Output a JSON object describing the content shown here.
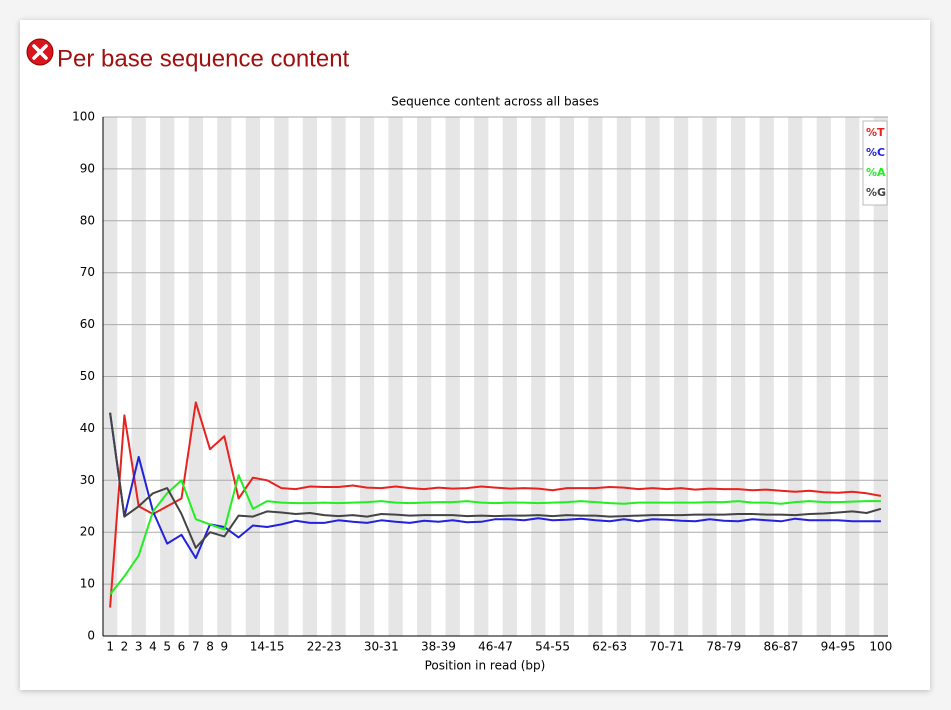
{
  "header": {
    "title": "Per base sequence content"
  },
  "chart_data": {
    "type": "line",
    "title": "Sequence content across all bases",
    "x_label": "Position in read (bp)",
    "categories": [
      "1",
      "2",
      "3",
      "4",
      "5",
      "6",
      "7",
      "8",
      "9",
      null,
      null,
      "14-15",
      null,
      null,
      null,
      "22-23",
      null,
      null,
      null,
      "30-31",
      null,
      null,
      null,
      "38-39",
      null,
      null,
      null,
      "46-47",
      null,
      null,
      null,
      "54-55",
      null,
      null,
      null,
      "62-63",
      null,
      null,
      null,
      "70-71",
      null,
      null,
      null,
      "78-79",
      null,
      null,
      null,
      "86-87",
      null,
      null,
      null,
      "94-95",
      null,
      null,
      "100"
    ],
    "series": [
      {
        "name": "%T",
        "color": "#e8231f",
        "values": [
          5.5,
          42.5,
          25,
          23.5,
          25,
          26.5,
          45,
          36,
          38.5,
          26.5,
          30.5,
          30,
          28.5,
          28.3,
          28.8,
          28.7,
          28.7,
          29.0,
          28.6,
          28.5,
          28.8,
          28.5,
          28.3,
          28.6,
          28.4,
          28.5,
          28.8,
          28.6,
          28.4,
          28.5,
          28.4,
          28.1,
          28.5,
          28.5,
          28.5,
          28.7,
          28.6,
          28.3,
          28.5,
          28.3,
          28.5,
          28.2,
          28.4,
          28.3,
          28.3,
          28.1,
          28.2,
          28.0,
          27.8,
          28.0,
          27.7,
          27.6,
          27.8,
          27.5,
          27.0
        ]
      },
      {
        "name": "%C",
        "color": "#2222dd",
        "values": [
          43,
          23,
          34.5,
          24,
          17.8,
          19.5,
          15,
          21.5,
          21,
          19,
          21.3,
          21,
          21.5,
          22.2,
          21.8,
          21.8,
          22.3,
          22,
          21.8,
          22.3,
          22,
          21.8,
          22.2,
          22,
          22.3,
          21.9,
          22,
          22.5,
          22.5,
          22.3,
          22.7,
          22.3,
          22.4,
          22.6,
          22.3,
          22.1,
          22.5,
          22.1,
          22.5,
          22.4,
          22.2,
          22.1,
          22.5,
          22.2,
          22.1,
          22.5,
          22.3,
          22.1,
          22.6,
          22.3,
          22.3,
          22.3,
          22.1,
          22.1,
          22.1
        ]
      },
      {
        "name": "%A",
        "color": "#22ee22",
        "values": [
          8,
          11.5,
          15.5,
          24,
          27.5,
          30,
          22.5,
          21.5,
          20.5,
          31,
          24.5,
          26,
          25.7,
          25.6,
          25.6,
          25.7,
          25.6,
          25.7,
          25.8,
          26,
          25.7,
          25.6,
          25.7,
          25.8,
          25.8,
          26,
          25.7,
          25.6,
          25.7,
          25.7,
          25.6,
          25.7,
          25.8,
          26,
          25.8,
          25.6,
          25.5,
          25.7,
          25.7,
          25.7,
          25.7,
          25.7,
          25.8,
          25.8,
          26,
          25.7,
          25.7,
          25.5,
          25.8,
          26,
          25.8,
          25.8,
          25.9,
          26,
          26
        ]
      },
      {
        "name": "%G",
        "color": "#444444",
        "values": [
          43,
          23,
          25,
          27.5,
          28.5,
          23.5,
          17,
          20,
          19.2,
          23.2,
          23,
          24,
          23.8,
          23.5,
          23.7,
          23.3,
          23.1,
          23.3,
          23,
          23.5,
          23.4,
          23.2,
          23.3,
          23.3,
          23.3,
          23.1,
          23.2,
          23.1,
          23.2,
          23.2,
          23.3,
          23.1,
          23.3,
          23.2,
          23.2,
          23,
          23.1,
          23.2,
          23.3,
          23.3,
          23.3,
          23.4,
          23.4,
          23.4,
          23.5,
          23.5,
          23.4,
          23.4,
          23.3,
          23.5,
          23.6,
          23.8,
          24,
          23.7,
          24.5
        ]
      }
    ],
    "ylim": [
      0,
      100
    ],
    "yticks": [
      0,
      10,
      20,
      30,
      40,
      50,
      60,
      70,
      80,
      90,
      100
    ],
    "grid": true,
    "legend": "upper right"
  }
}
